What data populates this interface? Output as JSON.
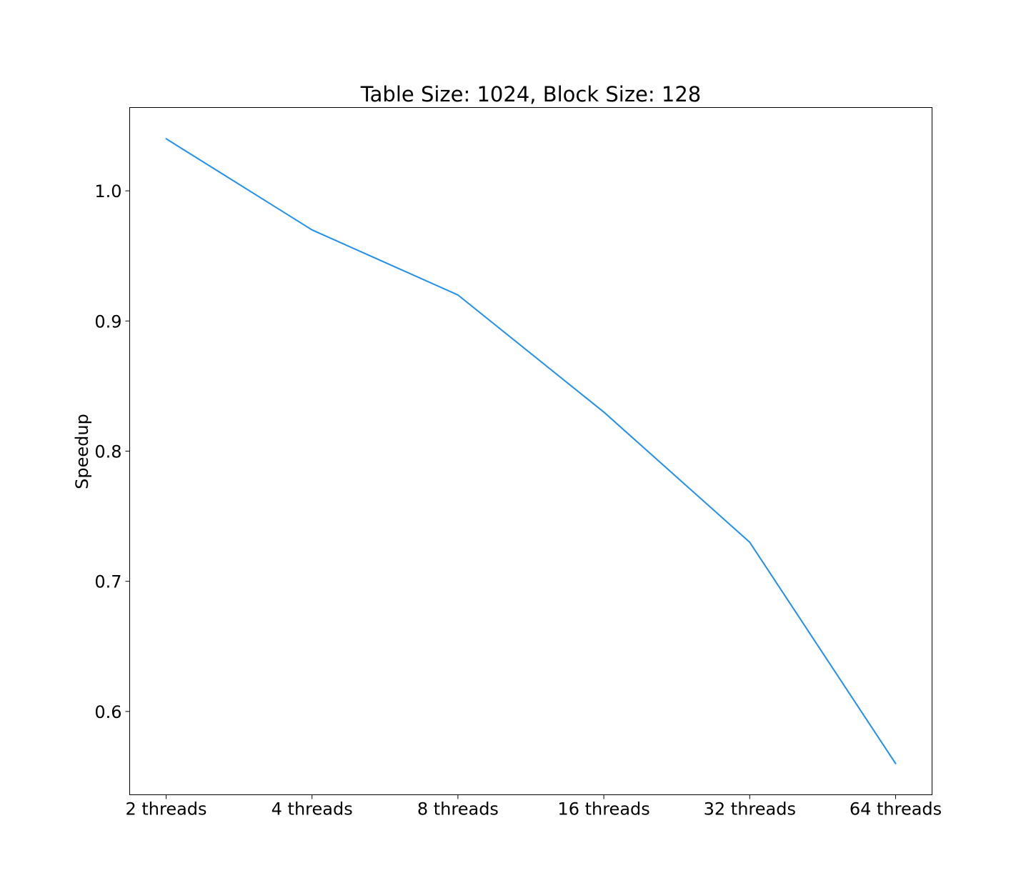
{
  "chart_data": {
    "type": "line",
    "title": "Table Size: 1024, Block Size: 128",
    "xlabel": "",
    "ylabel": "Speedup",
    "categories": [
      "2 threads",
      "4 threads",
      "8 threads",
      "16 threads",
      "32 threads",
      "64 threads"
    ],
    "series": [
      {
        "color": "#1f8ff0",
        "values": [
          1.04,
          0.97,
          0.92,
          0.83,
          0.73,
          0.56
        ]
      }
    ],
    "ylim": [
      0.536,
      1.064
    ],
    "yticks": [
      0.6,
      0.7,
      0.8,
      0.9,
      1.0
    ],
    "ytick_labels": [
      "0.6",
      "0.7",
      "0.8",
      "0.9",
      "1.0"
    ],
    "grid": false,
    "legend": "none"
  }
}
